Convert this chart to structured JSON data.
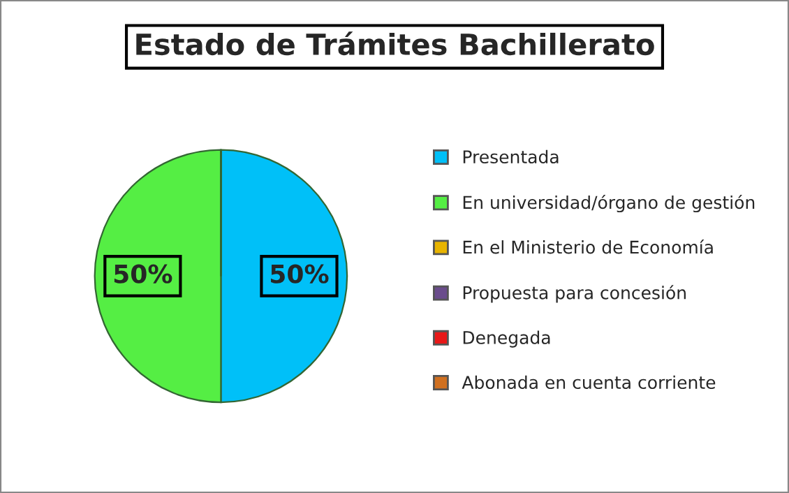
{
  "chart_data": {
    "type": "pie",
    "title": "Estado de Trámites Bachillerato",
    "categories": [
      "Presentada",
      "En universidad/órgano de gestión",
      "En el Ministerio de Economía",
      "Propuesta para concesión",
      "Denegada",
      "Abonada en cuenta corriente"
    ],
    "values": [
      50,
      50,
      0,
      0,
      0,
      0
    ],
    "colors": [
      "#00c0f8",
      "#55ee44",
      "#e8b400",
      "#6a4c8c",
      "#e81818",
      "#d07020"
    ],
    "value_labels": [
      "50%",
      "50%",
      null,
      null,
      null,
      null
    ],
    "legend": "right"
  }
}
